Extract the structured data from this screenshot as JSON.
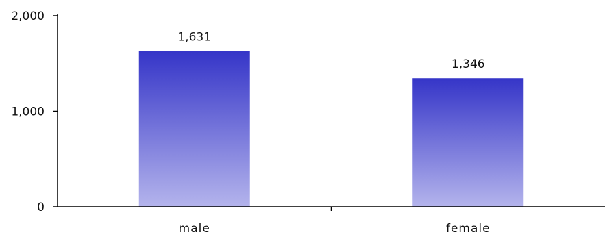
{
  "chart_data": {
    "type": "bar",
    "categories": [
      "male",
      "female"
    ],
    "values": [
      1631,
      1346
    ],
    "value_labels": [
      "1,631",
      "1,346"
    ],
    "ylim": [
      0,
      2000
    ],
    "y_ticks": [
      0,
      1000,
      2000
    ],
    "y_tick_labels": [
      "0",
      "1,000",
      "2,000"
    ],
    "grid": false,
    "legend": "none",
    "bar_gradient": [
      "#3535c8",
      "#b4b4ec"
    ],
    "axis_color": "#000000"
  }
}
